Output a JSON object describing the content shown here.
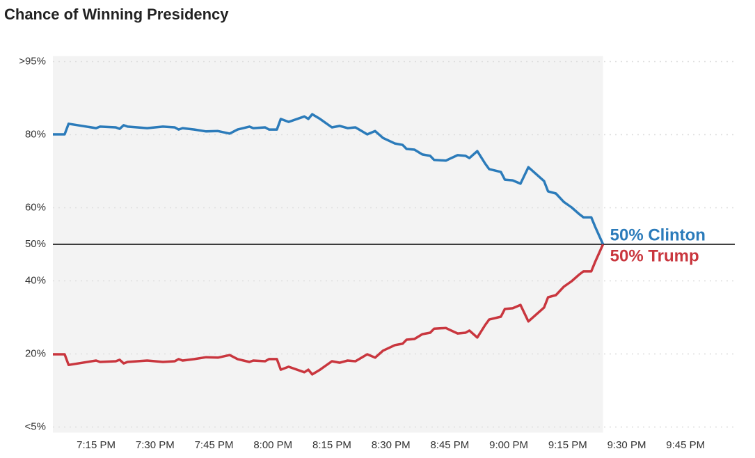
{
  "chart_data": {
    "type": "line",
    "title": "Chance of Winning Presidency",
    "x": [
      "7:04 PM",
      "7:07 PM",
      "7:08 PM",
      "7:15 PM",
      "7:16 PM",
      "7:20 PM",
      "7:21 PM",
      "7:22 PM",
      "7:23 PM",
      "7:28 PM",
      "7:32 PM",
      "7:35 PM",
      "7:36 PM",
      "7:37 PM",
      "7:40 PM",
      "7:43 PM",
      "7:46 PM",
      "7:49 PM",
      "7:51 PM",
      "7:54 PM",
      "7:55 PM",
      "7:58 PM",
      "7:59 PM",
      "8:01 PM",
      "8:02 PM",
      "8:04 PM",
      "8:08 PM",
      "8:09 PM",
      "8:10 PM",
      "8:12 PM",
      "8:15 PM",
      "8:17 PM",
      "8:19 PM",
      "8:21 PM",
      "8:24 PM",
      "8:26 PM",
      "8:28 PM",
      "8:31 PM",
      "8:33 PM",
      "8:34 PM",
      "8:36 PM",
      "8:38 PM",
      "8:40 PM",
      "8:41 PM",
      "8:44 PM",
      "8:45 PM",
      "8:47 PM",
      "8:49 PM",
      "8:50 PM",
      "8:52 PM",
      "8:54 PM",
      "8:55 PM",
      "8:58 PM",
      "8:59 PM",
      "9:01 PM",
      "9:03 PM",
      "9:05 PM",
      "9:07 PM",
      "9:09 PM",
      "9:10 PM",
      "9:12 PM",
      "9:14 PM",
      "9:16 PM",
      "9:18 PM",
      "9:19 PM",
      "9:21 PM",
      "9:22 PM",
      "9:24 PM"
    ],
    "series": [
      {
        "name": "Clinton",
        "label": "50% Clinton",
        "color": "#2b7bba",
        "values": [
          80.1,
          80.1,
          83.0,
          81.8,
          82.2,
          82.0,
          81.6,
          82.6,
          82.2,
          81.8,
          82.2,
          82.0,
          81.4,
          81.8,
          81.4,
          80.9,
          81.0,
          80.3,
          81.4,
          82.2,
          81.8,
          82.0,
          81.4,
          81.4,
          84.3,
          83.5,
          85.0,
          84.3,
          85.6,
          84.3,
          82.0,
          82.4,
          81.8,
          82.0,
          80.1,
          81.0,
          79.1,
          77.6,
          77.2,
          76.1,
          75.9,
          74.6,
          74.2,
          73.1,
          72.9,
          73.4,
          74.4,
          74.2,
          73.6,
          75.5,
          72.1,
          70.6,
          69.8,
          67.7,
          67.5,
          66.6,
          71.1,
          69.2,
          67.3,
          64.5,
          63.9,
          61.6,
          60.1,
          58.2,
          57.4,
          57.4,
          54.8,
          50.0
        ]
      },
      {
        "name": "Trump",
        "label": "50% Trump",
        "color": "#c9363e",
        "values": [
          19.9,
          19.9,
          17.0,
          18.2,
          17.8,
          18.0,
          18.4,
          17.4,
          17.8,
          18.2,
          17.8,
          18.0,
          18.6,
          18.2,
          18.6,
          19.1,
          19.0,
          19.7,
          18.6,
          17.8,
          18.2,
          18.0,
          18.6,
          18.6,
          15.7,
          16.5,
          15.0,
          15.7,
          14.4,
          15.7,
          18.0,
          17.6,
          18.2,
          18.0,
          19.9,
          19.0,
          20.9,
          22.4,
          22.8,
          23.9,
          24.1,
          25.4,
          25.8,
          26.9,
          27.1,
          26.6,
          25.6,
          25.8,
          26.4,
          24.5,
          27.9,
          29.4,
          30.2,
          32.3,
          32.5,
          33.4,
          28.9,
          30.8,
          32.7,
          35.5,
          36.1,
          38.4,
          39.9,
          41.8,
          42.6,
          42.6,
          45.2,
          50.0
        ]
      }
    ],
    "xlim": [
      "7:04 PM",
      "9:57 PM"
    ],
    "xticks": [
      "7:15 PM",
      "7:30 PM",
      "7:45 PM",
      "8:00 PM",
      "8:15 PM",
      "8:30 PM",
      "8:45 PM",
      "9:00 PM",
      "9:15 PM",
      "9:30 PM",
      "9:45 PM"
    ],
    "ylim": [
      0,
      100
    ],
    "yticks": [
      {
        "value": 0,
        "label": "<5%"
      },
      {
        "value": 20,
        "label": "20%"
      },
      {
        "value": 40,
        "label": "40%"
      },
      {
        "value": 50,
        "label": "50%"
      },
      {
        "value": 60,
        "label": "60%"
      },
      {
        "value": 80,
        "label": "80%"
      },
      {
        "value": 100,
        "label": ">95%"
      }
    ],
    "reference_line": 50,
    "grid": true
  }
}
